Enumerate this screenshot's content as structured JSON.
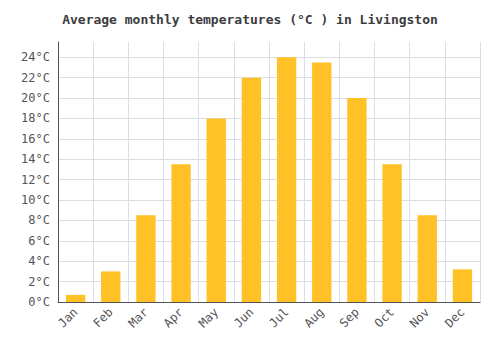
{
  "chart_data": {
    "type": "bar",
    "title": "Average monthly temperatures (°C ) in Livingston",
    "categories": [
      "Jan",
      "Feb",
      "Mar",
      "Apr",
      "May",
      "Jun",
      "Jul",
      "Aug",
      "Sep",
      "Oct",
      "Nov",
      "Dec"
    ],
    "values": [
      0.7,
      3.0,
      8.5,
      13.5,
      18.0,
      22.0,
      24.0,
      23.5,
      20.0,
      13.5,
      8.5,
      3.2
    ],
    "color": "#FFC125",
    "ylim": [
      0,
      25.5
    ],
    "yticks": [
      {
        "value": 0,
        "label": "0°C"
      },
      {
        "value": 2,
        "label": "2°C"
      },
      {
        "value": 4,
        "label": "4°C"
      },
      {
        "value": 6,
        "label": "6°C"
      },
      {
        "value": 8,
        "label": "8°C"
      },
      {
        "value": 10,
        "label": "10°C"
      },
      {
        "value": 12,
        "label": "12°C"
      },
      {
        "value": 14,
        "label": "14°C"
      },
      {
        "value": 16,
        "label": "16°C"
      },
      {
        "value": 18,
        "label": "18°C"
      },
      {
        "value": 20,
        "label": "20°C"
      },
      {
        "value": 22,
        "label": "22°C"
      },
      {
        "value": 24,
        "label": "24°C"
      }
    ],
    "grid": true
  }
}
